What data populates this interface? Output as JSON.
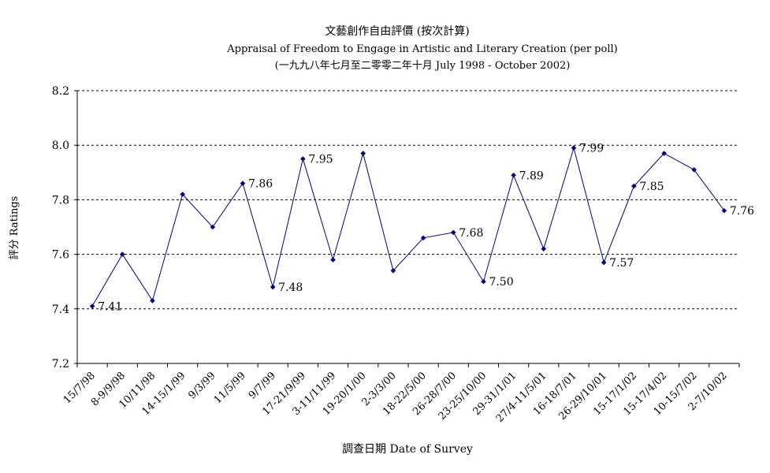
{
  "chart_data": {
    "type": "line",
    "title": "文藝創作自由評價 (按次計算)",
    "subtitle": "Appraisal of Freedom to Engage in Artistic and Literary Creation (per poll)",
    "subtitle2": "(一九九八年七月至二零零二年十月 July 1998 - October 2002)",
    "xlabel": "調查日期 Date of Survey",
    "ylabel": "評分 Ratings",
    "ylim": [
      7.2,
      8.2
    ],
    "yticks": [
      "7.2",
      "7.4",
      "7.6",
      "7.8",
      "8.0",
      "8.2"
    ],
    "grid": "horizontal dashed",
    "line_color": "#000080",
    "categories": [
      "15/7/98",
      "8-9/9/98",
      "10/11/98",
      "14-15/1/99",
      "9/3/99",
      "11/5/99",
      "9/7/99",
      "17-21/9/99",
      "3-11/11/99",
      "19-20/1/00",
      "2-3/3/00",
      "18-22/5/00",
      "26-28/7/00",
      "23-25/10/00",
      "29-31/1/01",
      "27/4-11/5/01",
      "16-18/7/01",
      "26-29/10/01",
      "15-17/1/02",
      "15-17/4/02",
      "10-15/7/02",
      "2-7/10/02"
    ],
    "values": [
      7.41,
      7.6,
      7.43,
      7.82,
      7.7,
      7.86,
      7.48,
      7.95,
      7.58,
      7.97,
      7.54,
      7.66,
      7.68,
      7.5,
      7.89,
      7.62,
      7.99,
      7.57,
      7.85,
      7.97,
      7.91,
      7.76
    ],
    "data_labels": [
      {
        "index": 0,
        "text": "7.41"
      },
      {
        "index": 5,
        "text": "7.86"
      },
      {
        "index": 6,
        "text": "7.48"
      },
      {
        "index": 7,
        "text": "7.95"
      },
      {
        "index": 12,
        "text": "7.68"
      },
      {
        "index": 13,
        "text": "7.50"
      },
      {
        "index": 14,
        "text": "7.89"
      },
      {
        "index": 16,
        "text": "7.99"
      },
      {
        "index": 17,
        "text": "7.57"
      },
      {
        "index": 18,
        "text": "7.85"
      },
      {
        "index": 21,
        "text": "7.76"
      }
    ]
  }
}
